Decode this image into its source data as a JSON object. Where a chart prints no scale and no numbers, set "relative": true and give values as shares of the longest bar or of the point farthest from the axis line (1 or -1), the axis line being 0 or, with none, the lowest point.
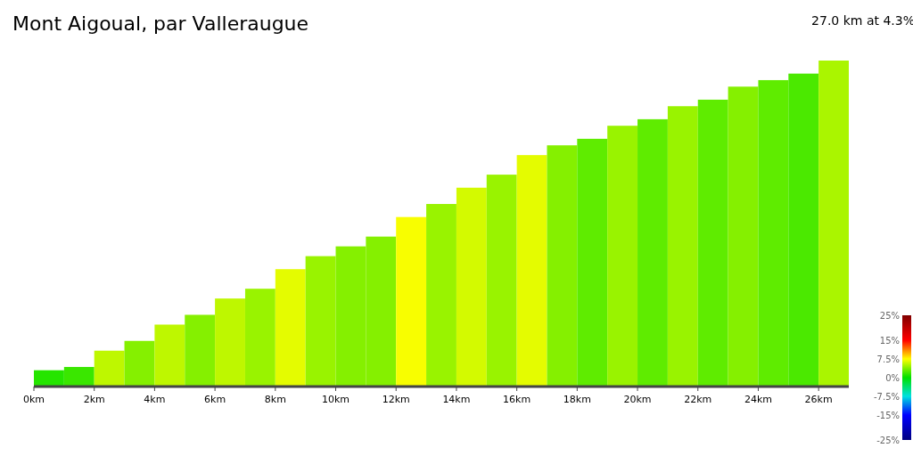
{
  "chart_data": {
    "type": "bar",
    "title": "Mont Aigoual, par Valleraugue",
    "subtitle": "27.0 km at 4.3%",
    "relative": true,
    "x": [
      0.5,
      1.5,
      2.5,
      3.5,
      4.5,
      5.5,
      6.5,
      7.5,
      8.5,
      9.5,
      10.5,
      11.5,
      12.5,
      13.5,
      14.5,
      15.5,
      16.5,
      17.5,
      18.5,
      19.5,
      20.5,
      21.5,
      22.5,
      23.5,
      24.5,
      25.5,
      26.5
    ],
    "values": [
      0.05,
      0.06,
      0.11,
      0.14,
      0.19,
      0.22,
      0.27,
      0.3,
      0.36,
      0.4,
      0.43,
      0.46,
      0.52,
      0.56,
      0.61,
      0.65,
      0.71,
      0.74,
      0.76,
      0.8,
      0.82,
      0.86,
      0.88,
      0.92,
      0.94,
      0.96,
      1
    ],
    "cvalues": [
      1.1,
      1.7,
      5.6,
      3.9,
      5.6,
      3.9,
      5.6,
      4.5,
      6.7,
      4.5,
      3.9,
      3.9,
      7.3,
      4.5,
      6.2,
      4.5,
      6.7,
      3.9,
      2.8,
      4.5,
      2.8,
      4.5,
      2.8,
      3.9,
      2.8,
      2.2,
      5
    ],
    "xlim": [
      0,
      27
    ],
    "xticks": [
      {
        "value": 0,
        "label": "0km"
      },
      {
        "value": 2,
        "label": "2km"
      },
      {
        "value": 4,
        "label": "4km"
      },
      {
        "value": 6,
        "label": "6km"
      },
      {
        "value": 8,
        "label": "8km"
      },
      {
        "value": 10,
        "label": "10km"
      },
      {
        "value": 12,
        "label": "12km"
      },
      {
        "value": 14,
        "label": "14km"
      },
      {
        "value": 16,
        "label": "16km"
      },
      {
        "value": 18,
        "label": "18km"
      },
      {
        "value": 20,
        "label": "20km"
      },
      {
        "value": 22,
        "label": "22km"
      },
      {
        "value": 24,
        "label": "24km"
      },
      {
        "value": 26,
        "label": "26km"
      }
    ],
    "clim": [
      -25,
      25
    ],
    "cticks": [
      {
        "value": 25,
        "label": "25%"
      },
      {
        "value": 15,
        "label": "15%"
      },
      {
        "value": 7.5,
        "label": "7.5%"
      },
      {
        "value": 0,
        "label": "0%"
      },
      {
        "value": -7.5,
        "label": "-7.5%"
      },
      {
        "value": -15,
        "label": "-15%"
      },
      {
        "value": -25,
        "label": "-25%"
      }
    ],
    "tick_labels": "x"
  }
}
